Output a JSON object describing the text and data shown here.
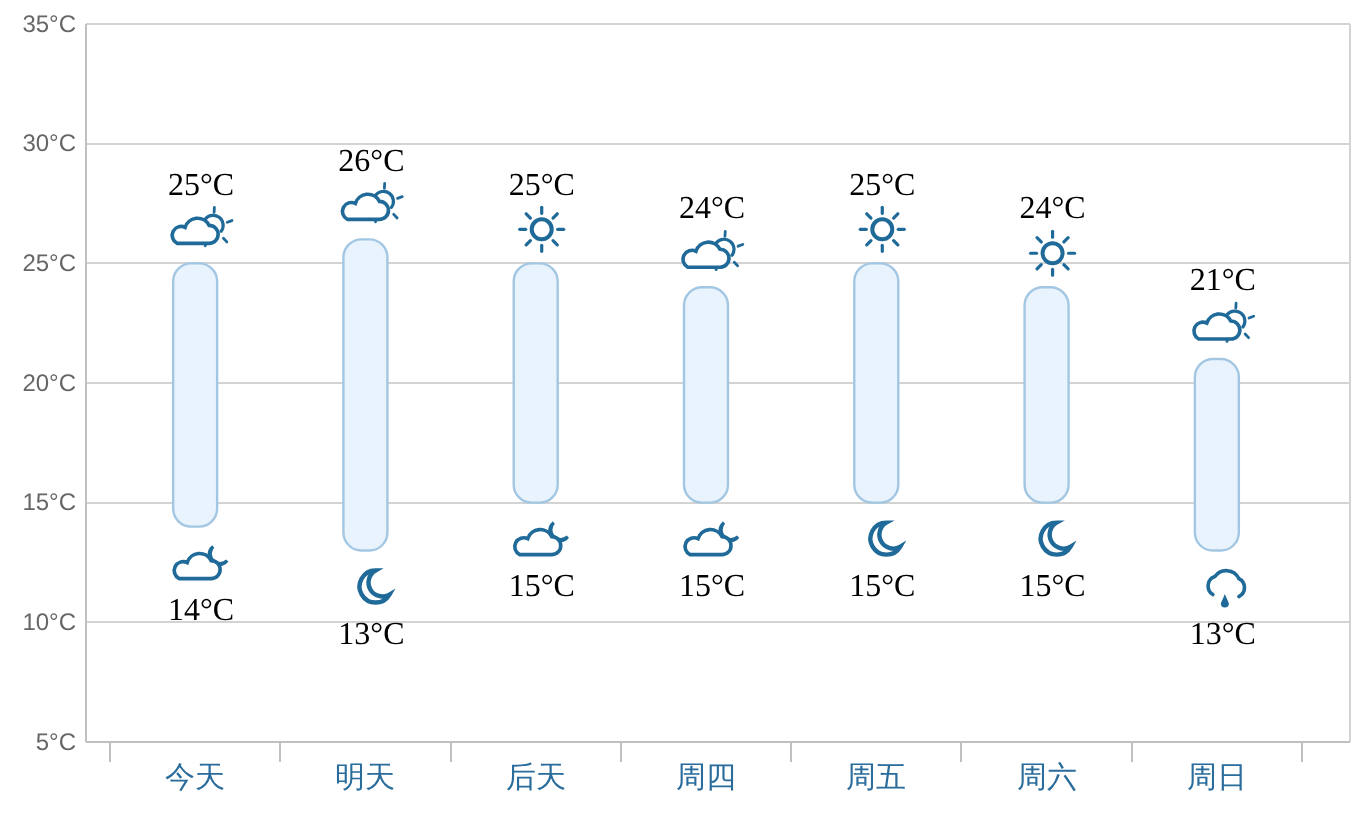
{
  "chart_data": {
    "type": "bar",
    "categories": [
      "今天",
      "明天",
      "后天",
      "周四",
      "周五",
      "周六",
      "周日"
    ],
    "base": [
      14,
      13,
      15,
      15,
      15,
      15,
      13
    ],
    "values": [
      11,
      13,
      10,
      9,
      10,
      9,
      8
    ],
    "color": "#e8f3fd",
    "ylim": [
      5,
      35
    ],
    "yticks": [
      {
        "value": 5,
        "label": "5°C"
      },
      {
        "value": 10,
        "label": "10°C"
      },
      {
        "value": 15,
        "label": "15°C"
      },
      {
        "value": 20,
        "label": "20°C"
      },
      {
        "value": 25,
        "label": "25°C"
      },
      {
        "value": 30,
        "label": "30°C"
      },
      {
        "value": 35,
        "label": "35°C"
      }
    ],
    "grid": "y",
    "annotations": [
      {
        "text": "25°C",
        "x": "今天",
        "y": 25
      },
      {
        "text": "14°C",
        "x": "今天",
        "y": 14
      },
      {
        "text": "26°C",
        "x": "明天",
        "y": 26
      },
      {
        "text": "13°C",
        "x": "明天",
        "y": 13
      },
      {
        "text": "25°C",
        "x": "后天",
        "y": 25
      },
      {
        "text": "15°C",
        "x": "后天",
        "y": 15
      },
      {
        "text": "24°C",
        "x": "周四",
        "y": 24
      },
      {
        "text": "15°C",
        "x": "周四",
        "y": 15
      },
      {
        "text": "25°C",
        "x": "周五",
        "y": 25
      },
      {
        "text": "15°C",
        "x": "周五",
        "y": 15
      },
      {
        "text": "24°C",
        "x": "周六",
        "y": 24
      },
      {
        "text": "15°C",
        "x": "周六",
        "y": 15
      },
      {
        "text": "21°C",
        "x": "周日",
        "y": 21
      },
      {
        "text": "13°C",
        "x": "周日",
        "y": 13
      }
    ]
  }
}
